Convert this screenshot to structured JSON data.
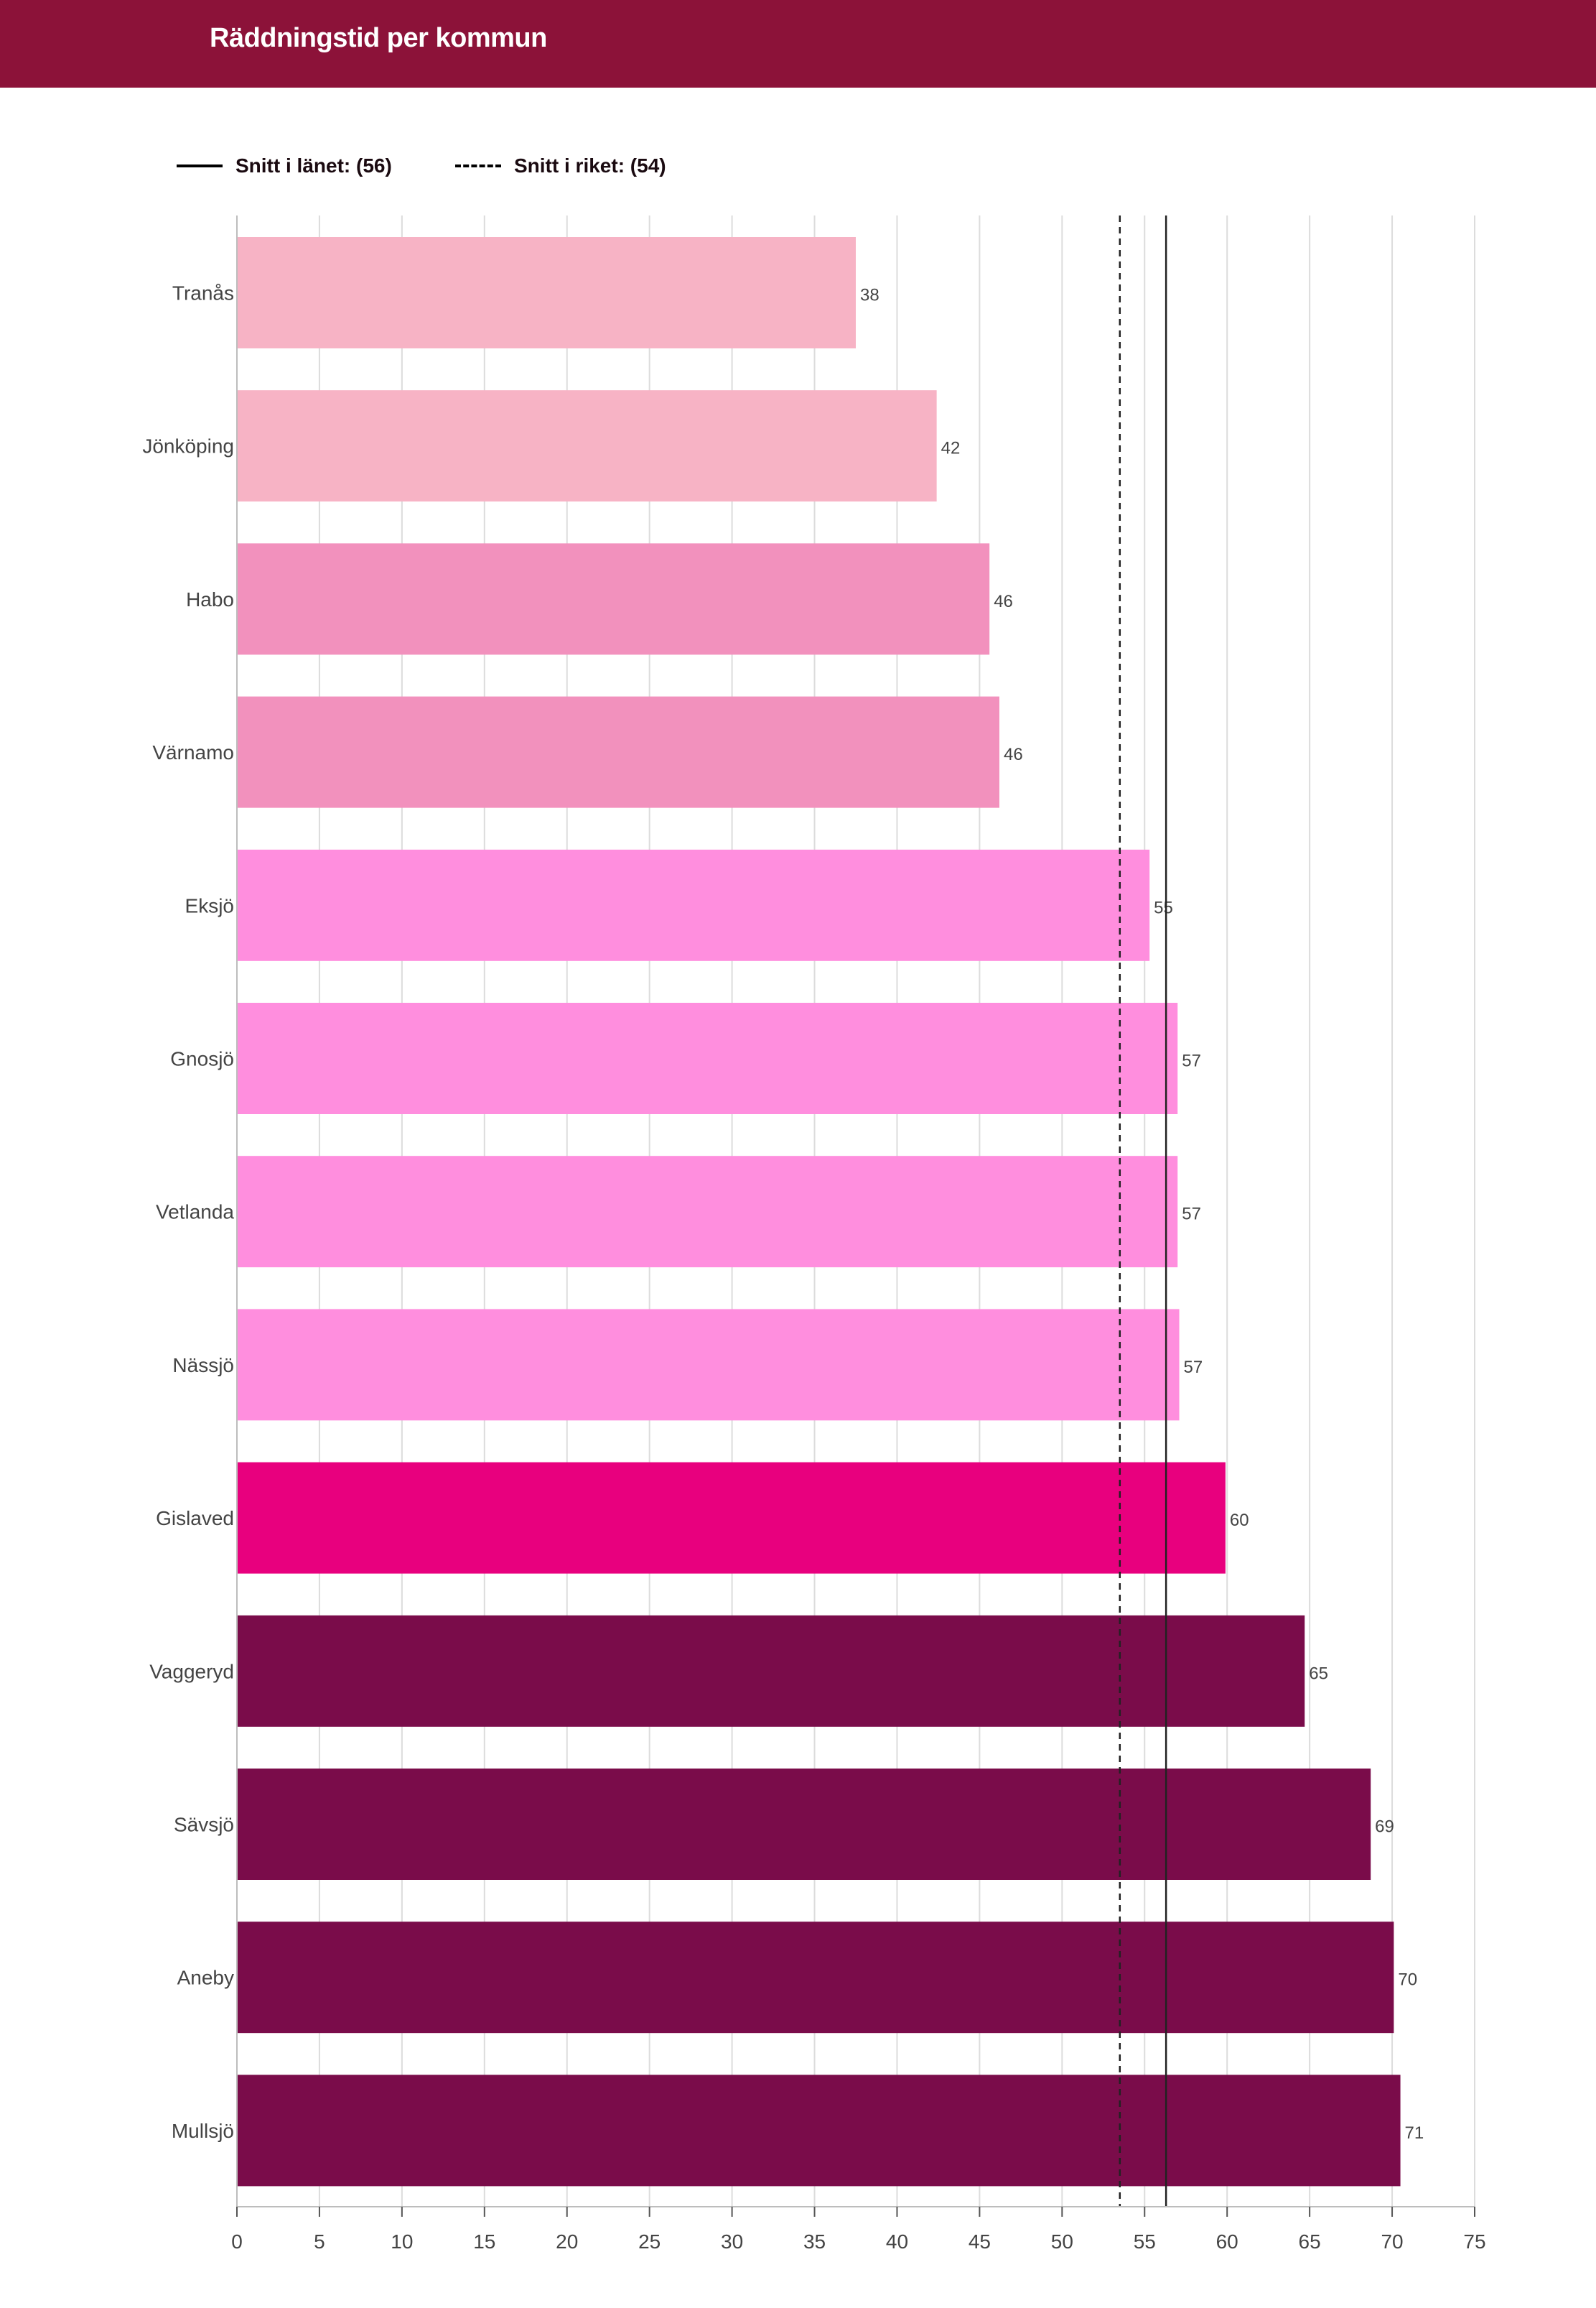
{
  "header": {
    "title": "Räddningstid per kommun"
  },
  "legend": {
    "county_avg_label": "Snitt i länet: (56)",
    "national_avg_label": "Snitt i riket: (54)"
  },
  "chart_data": {
    "type": "bar",
    "orientation": "horizontal",
    "title": "Räddningstid per kommun",
    "categories": [
      "Tranås",
      "Jönköping",
      "Habo",
      "Värnamo",
      "Eksjö",
      "Gnosjö",
      "Vetlanda",
      "Nässjö",
      "Gislaved",
      "Vaggeryd",
      "Sävsjö",
      "Aneby",
      "Mullsjö"
    ],
    "values": [
      37.5,
      42.4,
      45.6,
      46.2,
      55.3,
      57.0,
      57.0,
      57.1,
      59.9,
      64.7,
      68.7,
      70.1,
      70.5
    ],
    "value_labels": [
      "38",
      "42",
      "46",
      "46",
      "55",
      "57",
      "57",
      "57",
      "60",
      "65",
      "69",
      "70",
      "71"
    ],
    "colors": [
      "#f7b3c5",
      "#f7b3c5",
      "#f291bd",
      "#f291bd",
      "#ff8ede",
      "#ff8ede",
      "#ff8ede",
      "#ff8ede",
      "#e8007e",
      "#7a0c4a",
      "#7a0c4a",
      "#7a0c4a",
      "#7a0c4a"
    ],
    "xlim": [
      0,
      75
    ],
    "x_ticks": [
      0,
      5,
      10,
      15,
      20,
      25,
      30,
      35,
      40,
      45,
      50,
      55,
      60,
      65,
      70,
      75
    ],
    "grid": true,
    "reference_lines": [
      {
        "name": "Snitt i länet",
        "value": 56.3,
        "style": "solid"
      },
      {
        "name": "Snitt i riket",
        "value": 53.5,
        "style": "dashed"
      }
    ],
    "legend_position": "top-left"
  }
}
